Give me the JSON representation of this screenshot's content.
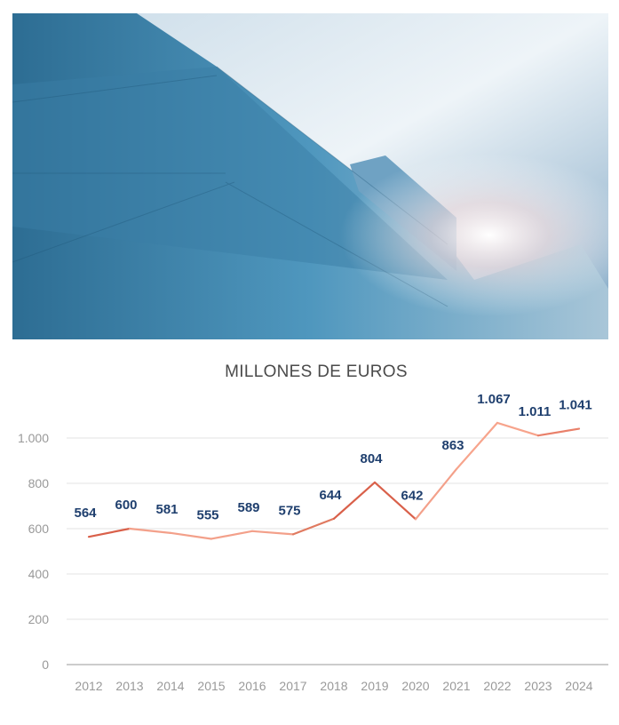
{
  "chart_data": {
    "type": "line",
    "title": "MILLONES DE EUROS",
    "categories": [
      "2012",
      "2013",
      "2014",
      "2015",
      "2016",
      "2017",
      "2018",
      "2019",
      "2020",
      "2021",
      "2022",
      "2023",
      "2024"
    ],
    "values": [
      564,
      600,
      581,
      555,
      589,
      575,
      644,
      804,
      642,
      863,
      1067,
      1011,
      1041
    ],
    "data_labels": [
      "564",
      "600",
      "581",
      "555",
      "589",
      "575",
      "644",
      "804",
      "642",
      "863",
      "1.067",
      "1.011",
      "1.041"
    ],
    "yticks": [
      0,
      200,
      400,
      600,
      800,
      1000
    ],
    "ytick_labels": [
      "0",
      "200",
      "400",
      "600",
      "800",
      "1.000"
    ],
    "ylim": [
      0,
      1100
    ],
    "grid": true,
    "xlabel": "",
    "ylabel": "",
    "colors": {
      "label": "#1f3f6e",
      "axis_text": "#999999",
      "grid": "#e3e3e3",
      "segments": [
        "#d9604a",
        "#f3a08a",
        "#f3a08a",
        "#f3a08a",
        "#f3a08a",
        "#e07a60",
        "#d9604a",
        "#d9604a",
        "#f3a08a",
        "#f7a48c",
        "#f7a48c",
        "#e9806a"
      ]
    }
  }
}
